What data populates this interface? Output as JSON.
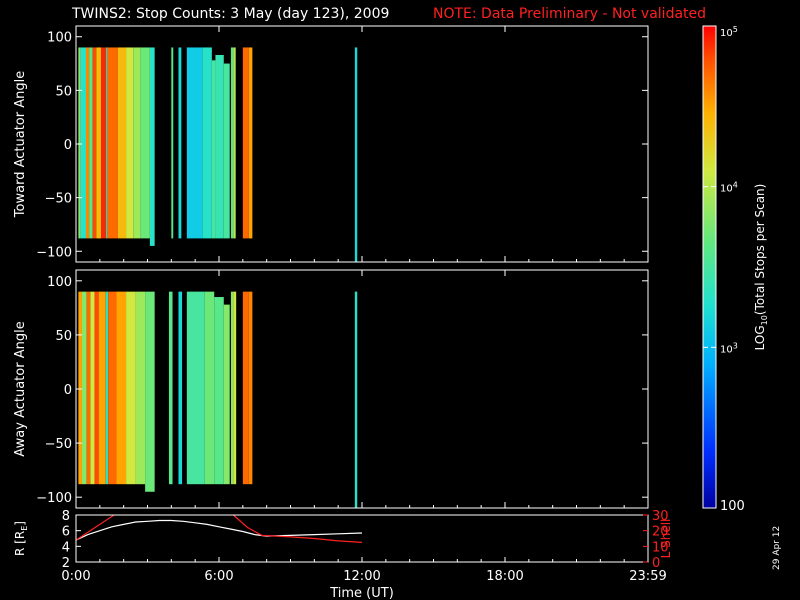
{
  "header": {
    "title": "TWINS2: Stop Counts:  3 May (day 123), 2009",
    "note": "NOTE: Data Preliminary - Not validated"
  },
  "stamp": "29 Apr 12",
  "chart_data": [
    {
      "type": "heatmap",
      "name": "toward-panel",
      "ylabel": "Toward Actuator Angle",
      "ylim": [
        -110,
        110
      ],
      "yticks": [
        100,
        50,
        0,
        -50,
        -100
      ],
      "xlim": [
        0,
        24
      ],
      "blocks": [
        {
          "t0": 0.1,
          "t1": 0.2,
          "amin": -88,
          "amax": 90,
          "val": 3.8
        },
        {
          "t0": 0.2,
          "t1": 0.42,
          "amin": -88,
          "amax": 90,
          "val": 3.3
        },
        {
          "t0": 0.42,
          "t1": 0.55,
          "amin": -88,
          "amax": 90,
          "val": 4.6
        },
        {
          "t0": 0.55,
          "t1": 0.7,
          "amin": -88,
          "amax": 90,
          "val": 3.6
        },
        {
          "t0": 0.7,
          "t1": 0.85,
          "amin": -88,
          "amax": 90,
          "val": 4.8
        },
        {
          "t0": 0.85,
          "t1": 1.05,
          "amin": -88,
          "amax": 90,
          "val": 4.4
        },
        {
          "t0": 1.05,
          "t1": 1.25,
          "amin": -88,
          "amax": 90,
          "val": 4.9
        },
        {
          "t0": 1.25,
          "t1": 1.3,
          "amin": -88,
          "amax": 90,
          "val": 3.2
        },
        {
          "t0": 1.3,
          "t1": 1.75,
          "amin": -88,
          "amax": 90,
          "val": 4.7
        },
        {
          "t0": 1.75,
          "t1": 2.1,
          "amin": -88,
          "amax": 90,
          "val": 4.4
        },
        {
          "t0": 2.1,
          "t1": 2.4,
          "amin": -88,
          "amax": 90,
          "val": 4.1
        },
        {
          "t0": 2.4,
          "t1": 2.7,
          "amin": -88,
          "amax": 90,
          "val": 3.9
        },
        {
          "t0": 2.7,
          "t1": 3.1,
          "amin": -88,
          "amax": 90,
          "val": 3.7
        },
        {
          "t0": 3.1,
          "t1": 3.3,
          "amin": -95,
          "amax": 90,
          "val": 3.3
        },
        {
          "t0": 4.0,
          "t1": 4.08,
          "amin": -88,
          "amax": 90,
          "val": 3.6
        },
        {
          "t0": 4.3,
          "t1": 4.42,
          "amin": -88,
          "amax": 90,
          "val": 3.2
        },
        {
          "t0": 4.65,
          "t1": 5.3,
          "amin": -88,
          "amax": 90,
          "val": 3.1
        },
        {
          "t0": 5.3,
          "t1": 5.7,
          "amin": -88,
          "amax": 90,
          "val": 3.3
        },
        {
          "t0": 5.7,
          "t1": 5.85,
          "amin": -88,
          "amax": 78,
          "val": 3.5
        },
        {
          "t0": 5.85,
          "t1": 6.2,
          "amin": -88,
          "amax": 83,
          "val": 3.4
        },
        {
          "t0": 6.2,
          "t1": 6.45,
          "amin": -88,
          "amax": 75,
          "val": 3.5
        },
        {
          "t0": 6.5,
          "t1": 6.6,
          "amin": -88,
          "amax": 90,
          "val": 3.6
        },
        {
          "t0": 6.6,
          "t1": 6.7,
          "amin": -88,
          "amax": 90,
          "val": 4.0
        },
        {
          "t0": 7.0,
          "t1": 7.25,
          "amin": -88,
          "amax": 90,
          "val": 4.7
        },
        {
          "t0": 7.25,
          "t1": 7.4,
          "amin": -88,
          "amax": 90,
          "val": 4.5
        },
        {
          "t0": 11.7,
          "t1": 11.8,
          "amin": -110,
          "amax": 90,
          "val": 3.2
        }
      ]
    },
    {
      "type": "heatmap",
      "name": "away-panel",
      "ylabel": "Away Actuator Angle",
      "ylim": [
        -110,
        110
      ],
      "yticks": [
        100,
        50,
        0,
        -50,
        -100
      ],
      "xlim": [
        0,
        24
      ],
      "blocks": [
        {
          "t0": 0.1,
          "t1": 0.25,
          "amin": -88,
          "amax": 90,
          "val": 4.5
        },
        {
          "t0": 0.25,
          "t1": 0.45,
          "amin": -88,
          "amax": 90,
          "val": 3.8
        },
        {
          "t0": 0.45,
          "t1": 0.6,
          "amin": -88,
          "amax": 90,
          "val": 4.7
        },
        {
          "t0": 0.6,
          "t1": 0.78,
          "amin": -88,
          "amax": 90,
          "val": 4.1
        },
        {
          "t0": 0.78,
          "t1": 0.95,
          "amin": -88,
          "amax": 90,
          "val": 4.8
        },
        {
          "t0": 0.95,
          "t1": 1.25,
          "amin": -88,
          "amax": 90,
          "val": 4.5
        },
        {
          "t0": 1.25,
          "t1": 1.35,
          "amin": -88,
          "amax": 90,
          "val": 3.3
        },
        {
          "t0": 1.35,
          "t1": 1.7,
          "amin": -88,
          "amax": 90,
          "val": 4.7
        },
        {
          "t0": 1.7,
          "t1": 2.1,
          "amin": -88,
          "amax": 90,
          "val": 4.5
        },
        {
          "t0": 2.1,
          "t1": 2.5,
          "amin": -88,
          "amax": 90,
          "val": 4.1
        },
        {
          "t0": 2.5,
          "t1": 2.9,
          "amin": -88,
          "amax": 90,
          "val": 3.9
        },
        {
          "t0": 2.9,
          "t1": 3.3,
          "amin": -95,
          "amax": 90,
          "val": 3.7
        },
        {
          "t0": 3.9,
          "t1": 4.05,
          "amin": -88,
          "amax": 90,
          "val": 3.6
        },
        {
          "t0": 4.3,
          "t1": 4.45,
          "amin": -88,
          "amax": 90,
          "val": 3.2
        },
        {
          "t0": 4.65,
          "t1": 5.4,
          "amin": -88,
          "amax": 90,
          "val": 3.5
        },
        {
          "t0": 5.4,
          "t1": 5.8,
          "amin": -88,
          "amax": 90,
          "val": 3.7
        },
        {
          "t0": 5.8,
          "t1": 6.2,
          "amin": -88,
          "amax": 85,
          "val": 3.6
        },
        {
          "t0": 6.2,
          "t1": 6.45,
          "amin": -88,
          "amax": 78,
          "val": 3.8
        },
        {
          "t0": 6.5,
          "t1": 6.6,
          "amin": -88,
          "amax": 90,
          "val": 3.8
        },
        {
          "t0": 6.6,
          "t1": 6.72,
          "amin": -88,
          "amax": 90,
          "val": 4.1
        },
        {
          "t0": 7.0,
          "t1": 7.25,
          "amin": -88,
          "amax": 90,
          "val": 4.7
        },
        {
          "t0": 7.25,
          "t1": 7.4,
          "amin": -88,
          "amax": 90,
          "val": 4.6
        },
        {
          "t0": 11.7,
          "t1": 11.8,
          "amin": -110,
          "amax": 90,
          "val": 3.3
        }
      ]
    },
    {
      "type": "line",
      "name": "orbit-panel",
      "ylabel": "R [R",
      "ylabel_sub": "E",
      "ylabel_right": "L Shell",
      "ylim": [
        2,
        8
      ],
      "yticks": [
        2,
        4,
        6,
        8
      ],
      "y2lim": [
        0,
        30
      ],
      "y2ticks": [
        0,
        10,
        20,
        30
      ],
      "xlim": [
        0,
        24
      ],
      "xticks": [
        "0:00",
        "6:00",
        "12:00",
        "18:00",
        "23:59"
      ],
      "xtick_values": [
        0,
        6,
        12,
        18,
        24
      ],
      "xlabel": "Time (UT)",
      "series": [
        {
          "axis": "left",
          "color": "#ffffff",
          "x": [
            0,
            0.5,
            1,
            1.5,
            2,
            2.5,
            3,
            3.5,
            4,
            4.5,
            5,
            5.5,
            6,
            6.5,
            7,
            7.5,
            8,
            9,
            10,
            11,
            12
          ],
          "y": [
            4.8,
            5.5,
            6.0,
            6.5,
            6.8,
            7.1,
            7.2,
            7.3,
            7.3,
            7.2,
            7.0,
            6.8,
            6.5,
            6.2,
            5.9,
            5.5,
            5.3,
            5.4,
            5.5,
            5.6,
            5.7
          ]
        },
        {
          "axis": "right",
          "color": "#ff2020",
          "x": [
            0,
            1,
            1.6
          ],
          "y": [
            14,
            24,
            30
          ]
        },
        {
          "axis": "right",
          "color": "#ff2020",
          "x": [
            6.6,
            7.2,
            7.8,
            9,
            10,
            11,
            12
          ],
          "y": [
            30,
            22,
            17,
            16,
            15,
            13.5,
            12.5
          ]
        }
      ]
    }
  ],
  "colorbar": {
    "label": "LOG  (Total Stops per Scan)",
    "label_sub": "10",
    "ticks": [
      {
        "val": 5,
        "text": "10",
        "sup": "5"
      },
      {
        "val": 4,
        "text": "10",
        "sup": "4"
      },
      {
        "val": 3,
        "text": "10",
        "sup": "3"
      },
      {
        "val": 2,
        "text": "100",
        "sup": ""
      }
    ],
    "range": [
      2,
      5
    ]
  }
}
